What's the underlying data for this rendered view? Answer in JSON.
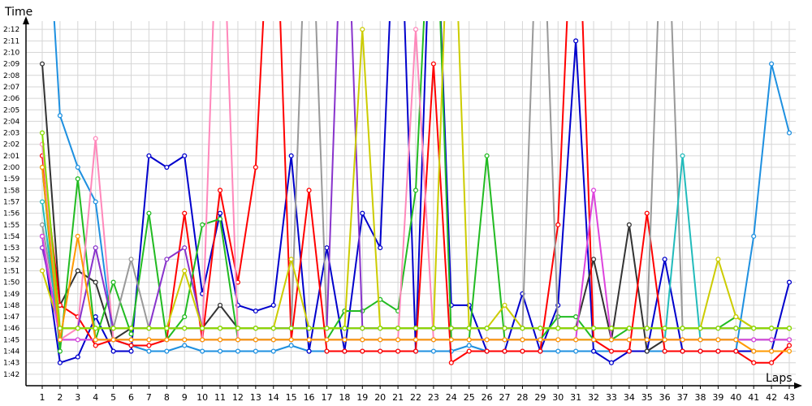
{
  "chart_data": {
    "type": "line",
    "ylabel": "Time",
    "xlabel": "Laps",
    "y_unit": "lap time (m:ss)",
    "grid": true,
    "xlim": [
      1,
      43
    ],
    "ylim": [
      101,
      133
    ],
    "yticks": [
      {
        "v": 102,
        "label": "1:42"
      },
      {
        "v": 103,
        "label": "1:43"
      },
      {
        "v": 104,
        "label": "1:44"
      },
      {
        "v": 105,
        "label": "1:45"
      },
      {
        "v": 106,
        "label": "1:46"
      },
      {
        "v": 107,
        "label": "1:47"
      },
      {
        "v": 108,
        "label": "1:48"
      },
      {
        "v": 109,
        "label": "1:49"
      },
      {
        "v": 110,
        "label": "1:50"
      },
      {
        "v": 111,
        "label": "1:51"
      },
      {
        "v": 112,
        "label": "1:52"
      },
      {
        "v": 113,
        "label": "1:53"
      },
      {
        "v": 114,
        "label": "1:54"
      },
      {
        "v": 115,
        "label": "1:55"
      },
      {
        "v": 116,
        "label": "1:56"
      },
      {
        "v": 117,
        "label": "1:57"
      },
      {
        "v": 118,
        "label": "1:58"
      },
      {
        "v": 119,
        "label": "1:59"
      },
      {
        "v": 120,
        "label": "2:00"
      },
      {
        "v": 121,
        "label": "2:01"
      },
      {
        "v": 122,
        "label": "2:02"
      },
      {
        "v": 123,
        "label": "2:03"
      },
      {
        "v": 124,
        "label": "2:04"
      },
      {
        "v": 125,
        "label": "2:05"
      },
      {
        "v": 126,
        "label": "2:06"
      },
      {
        "v": 127,
        "label": "2:07"
      },
      {
        "v": 128,
        "label": "2:08"
      },
      {
        "v": 129,
        "label": "2:09"
      },
      {
        "v": 130,
        "label": "2:10"
      },
      {
        "v": 131,
        "label": "2:11"
      },
      {
        "v": 132,
        "label": "2:12"
      }
    ],
    "xticks": [
      "1",
      "2",
      "3",
      "4",
      "5",
      "6",
      "7",
      "8",
      "9",
      "10",
      "11",
      "12",
      "13",
      "14",
      "15",
      "16",
      "17",
      "18",
      "19",
      "20",
      "21",
      "22",
      "23",
      "24",
      "25",
      "26",
      "27",
      "28",
      "29",
      "30",
      "31",
      "32",
      "33",
      "34",
      "35",
      "36",
      "37",
      "38",
      "39",
      "40",
      "41",
      "42",
      "43"
    ],
    "series": [
      {
        "color": "#1e90e0",
        "values": [
          150,
          124.5,
          120,
          117,
          105,
          104.5,
          104,
          104,
          104.5,
          104,
          104,
          104,
          104,
          104,
          104.5,
          104,
          104,
          104,
          104,
          104,
          104,
          104,
          104,
          104,
          104.5,
          104,
          104,
          104,
          104,
          104,
          104,
          104,
          104,
          104,
          104,
          104,
          104,
          104,
          104,
          104,
          114,
          129,
          123
        ]
      },
      {
        "color": "#0000cc",
        "values": [
          114,
          103,
          103.5,
          107,
          104,
          104,
          121,
          120,
          121,
          109,
          116,
          108,
          107.5,
          108,
          121,
          104,
          113,
          104,
          116,
          113,
          150,
          104,
          150,
          108,
          108,
          104,
          104,
          109,
          104,
          108,
          131,
          104,
          103,
          104,
          104,
          112,
          104,
          104,
          104,
          104,
          104,
          104,
          110
        ]
      },
      {
        "color": "#333333",
        "values": [
          129,
          108,
          111,
          110,
          105,
          106,
          106,
          106,
          106,
          106,
          108,
          106,
          106,
          106,
          106,
          106,
          106,
          106,
          106,
          106,
          106,
          106,
          106,
          106,
          106,
          106,
          106,
          106,
          106,
          106,
          106,
          112,
          105,
          115,
          104,
          105,
          105,
          105,
          105,
          105,
          105,
          105,
          105
        ]
      },
      {
        "color": "#ff0000",
        "values": [
          121,
          108,
          107,
          104.5,
          105,
          104.5,
          104.5,
          105,
          116,
          105,
          118,
          110,
          120,
          150,
          105,
          118,
          104,
          104,
          104,
          104,
          104,
          104,
          129,
          103,
          104,
          104,
          104,
          104,
          104,
          115,
          150,
          105,
          104,
          104,
          116,
          104,
          104,
          104,
          104,
          104,
          103,
          103,
          104.5
        ]
      },
      {
        "color": "#22bb22",
        "values": [
          120,
          104,
          119,
          105,
          110,
          105.5,
          116,
          105,
          107,
          115,
          115.5,
          105,
          105,
          105,
          105,
          105,
          105,
          107.5,
          107.5,
          108.5,
          107.5,
          118,
          150,
          105,
          105,
          121,
          105,
          105,
          105,
          107,
          107,
          105,
          105,
          106,
          106,
          106,
          106,
          106,
          106,
          107,
          106,
          106,
          106
        ]
      },
      {
        "color": "#ff88bb",
        "values": [
          122,
          105,
          106,
          122.5,
          105,
          105,
          105,
          105,
          105,
          105,
          150,
          105,
          105,
          105,
          105,
          105,
          105,
          105,
          105,
          105,
          105,
          132,
          105,
          105,
          105,
          105,
          105,
          105,
          105,
          105,
          105,
          105,
          105,
          105,
          105,
          105,
          105,
          105,
          105,
          105,
          105,
          105,
          105
        ]
      },
      {
        "color": "#999999",
        "values": [
          115,
          106,
          106,
          106,
          106,
          112,
          106,
          106,
          106,
          106,
          106,
          106,
          106,
          106,
          106,
          150,
          106,
          106,
          106,
          106,
          106,
          106,
          106,
          106,
          106,
          106,
          106,
          106,
          150,
          106,
          106,
          106,
          106,
          106,
          106,
          150,
          106,
          106,
          106,
          106,
          106,
          106,
          106
        ]
      },
      {
        "color": "#8833cc",
        "values": [
          113,
          106,
          106,
          113,
          106,
          106,
          106,
          112,
          113,
          106,
          106,
          106,
          106,
          106,
          106,
          106,
          106,
          150,
          106,
          106,
          106,
          106,
          106,
          106,
          106,
          106,
          106,
          106,
          106,
          106,
          106,
          106,
          106,
          106,
          106,
          106,
          106,
          106,
          106,
          106,
          106,
          106,
          106
        ]
      },
      {
        "color": "#cccc00",
        "values": [
          111,
          106,
          106,
          106,
          106,
          106,
          106,
          106,
          111,
          106,
          106,
          106,
          106,
          106,
          112,
          106,
          106,
          106,
          132,
          106,
          106,
          106,
          106,
          150,
          106,
          106,
          108,
          106,
          106,
          106,
          106,
          106,
          106,
          106,
          106,
          106,
          106,
          106,
          112,
          107,
          106,
          106,
          106
        ]
      },
      {
        "color": "#22bbbb",
        "values": [
          117,
          105,
          105,
          105,
          105,
          105,
          105,
          105,
          105,
          105,
          105,
          105,
          105,
          105,
          105,
          105,
          105,
          105,
          105,
          105,
          105,
          105,
          105,
          105,
          105,
          105,
          105,
          105,
          105,
          105,
          105,
          105,
          105,
          105,
          105,
          105,
          121,
          105,
          105,
          105,
          105,
          105,
          105
        ]
      },
      {
        "color": "#dd44dd",
        "values": [
          114,
          105,
          105,
          105,
          105,
          105,
          105,
          105,
          105,
          105,
          105,
          105,
          105,
          105,
          105,
          105,
          105,
          105,
          105,
          105,
          105,
          105,
          105,
          105,
          105,
          105,
          105,
          105,
          105,
          105,
          105,
          118,
          105,
          105,
          105,
          105,
          105,
          105,
          105,
          105,
          105,
          105,
          105
        ]
      },
      {
        "color": "#ff9900",
        "values": [
          120,
          105,
          114,
          105,
          105,
          105,
          105,
          105,
          105,
          105,
          105,
          105,
          105,
          105,
          105,
          105,
          105,
          105,
          105,
          105,
          105,
          105,
          105,
          105,
          105,
          105,
          105,
          105,
          105,
          105,
          105,
          105,
          105,
          105,
          105,
          105,
          105,
          105,
          105,
          105,
          104,
          104,
          104
        ]
      },
      {
        "color": "#88dd00",
        "values": [
          123,
          106,
          106,
          106,
          106,
          106,
          106,
          106,
          106,
          106,
          106,
          106,
          106,
          106,
          106,
          106,
          106,
          106,
          106,
          106,
          106,
          106,
          106,
          106,
          106,
          106,
          106,
          106,
          106,
          106,
          106,
          106,
          106,
          106,
          106,
          106,
          106,
          106,
          106,
          106,
          106,
          106,
          106
        ]
      }
    ]
  }
}
